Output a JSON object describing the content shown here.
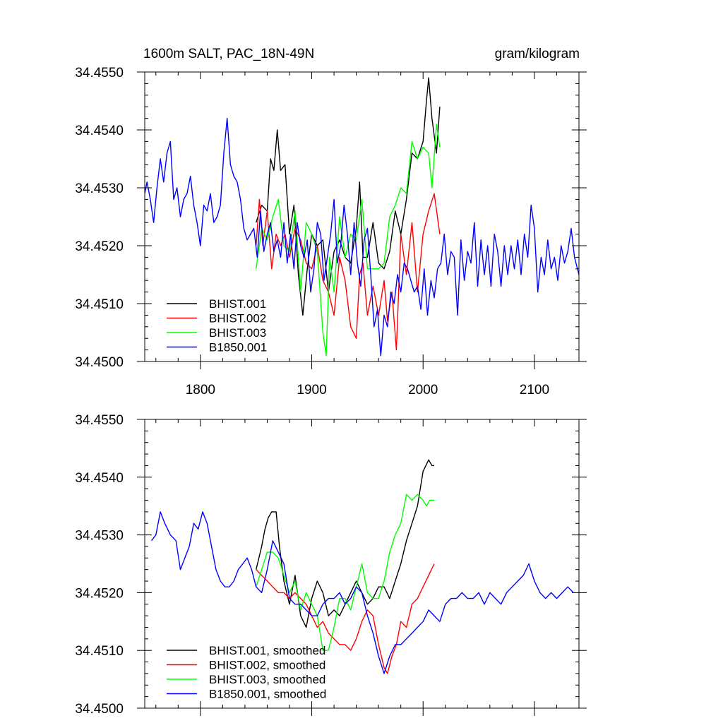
{
  "chart_data": [
    {
      "type": "line",
      "title": "1600m SALT, PAC_18N-49N",
      "units": "gram/kilogram",
      "xlim": [
        1750,
        2140
      ],
      "ylim": [
        34.45,
        34.455
      ],
      "xticks": [
        1800,
        1900,
        2000,
        2100
      ],
      "yticks": [
        34.45,
        34.451,
        34.452,
        34.453,
        34.454,
        34.455
      ],
      "ytick_labels": [
        "34.4500",
        "34.4510",
        "34.4520",
        "34.4530",
        "34.4540",
        "34.4550"
      ],
      "xtick_labels": [
        "1800",
        "1900",
        "2000",
        "2100"
      ],
      "legend_position": "bottom-left",
      "series": [
        {
          "name": "BHIST.001",
          "color": "#000000",
          "x": [
            1850,
            1855,
            1860,
            1863,
            1866,
            1869,
            1872,
            1876,
            1880,
            1884,
            1888,
            1892,
            1896,
            1900,
            1905,
            1910,
            1915,
            1920,
            1925,
            1930,
            1935,
            1940,
            1943,
            1946,
            1950,
            1955,
            1960,
            1965,
            1970,
            1975,
            1980,
            1985,
            1990,
            1995,
            2000,
            2003,
            2005,
            2008,
            2012,
            2015
          ],
          "y": [
            34.4524,
            34.4527,
            34.4526,
            34.4535,
            34.4533,
            34.454,
            34.4533,
            34.4534,
            34.4522,
            34.4527,
            34.4515,
            34.4508,
            34.4516,
            34.4522,
            34.452,
            34.4521,
            34.4512,
            34.4519,
            34.4521,
            34.4518,
            34.4517,
            34.4523,
            34.4531,
            34.4518,
            34.4518,
            34.4524,
            34.4517,
            34.4516,
            34.4519,
            34.4526,
            34.4522,
            34.4528,
            34.4536,
            34.4535,
            34.4538,
            34.4545,
            34.4549,
            34.4542,
            34.4536,
            34.4544
          ]
        },
        {
          "name": "BHIST.002",
          "color": "#ff0000",
          "x": [
            1850,
            1853,
            1856,
            1860,
            1864,
            1868,
            1872,
            1876,
            1880,
            1885,
            1890,
            1895,
            1900,
            1905,
            1910,
            1915,
            1920,
            1925,
            1930,
            1935,
            1940,
            1943,
            1946,
            1950,
            1955,
            1960,
            1965,
            1968,
            1972,
            1976,
            1980,
            1985,
            1990,
            1995,
            2000,
            2005,
            2010,
            2015
          ],
          "y": [
            34.452,
            34.4528,
            34.452,
            34.4526,
            34.4516,
            34.4522,
            34.452,
            34.4522,
            34.4518,
            34.4523,
            34.4521,
            34.4517,
            34.4516,
            34.452,
            34.4514,
            34.4512,
            34.4508,
            34.4518,
            34.4514,
            34.4506,
            34.4504,
            34.4515,
            34.4517,
            34.4508,
            34.4513,
            34.4508,
            34.4514,
            34.4507,
            34.4512,
            34.4502,
            34.4522,
            34.4515,
            34.4524,
            34.4512,
            34.4522,
            34.4526,
            34.4529,
            34.4522
          ]
        },
        {
          "name": "BHIST.003",
          "color": "#00ff00",
          "x": [
            1850,
            1855,
            1860,
            1865,
            1870,
            1875,
            1880,
            1885,
            1890,
            1895,
            1900,
            1905,
            1910,
            1913,
            1916,
            1920,
            1925,
            1930,
            1935,
            1940,
            1945,
            1950,
            1955,
            1960,
            1965,
            1970,
            1975,
            1980,
            1985,
            1990,
            1995,
            2000,
            2005,
            2008,
            2012,
            2015
          ],
          "y": [
            34.4516,
            34.4523,
            34.4521,
            34.4525,
            34.4528,
            34.452,
            34.4519,
            34.4526,
            34.4512,
            34.4524,
            34.4522,
            34.4519,
            34.4505,
            34.4501,
            34.4518,
            34.4512,
            34.4525,
            34.4518,
            34.4522,
            34.4521,
            34.4528,
            34.4516,
            34.4516,
            34.4516,
            34.4517,
            34.4525,
            34.4527,
            34.453,
            34.4529,
            34.4538,
            34.4535,
            34.4537,
            34.4536,
            34.453,
            34.4541,
            34.4537
          ]
        },
        {
          "name": "B1850.001",
          "color": "#0000ff",
          "x": [
            1750,
            1752,
            1755,
            1758,
            1761,
            1764,
            1767,
            1770,
            1773,
            1776,
            1779,
            1782,
            1785,
            1788,
            1791,
            1794,
            1797,
            1800,
            1803,
            1806,
            1809,
            1812,
            1815,
            1818,
            1821,
            1824,
            1827,
            1830,
            1833,
            1836,
            1839,
            1842,
            1845,
            1848,
            1851,
            1854,
            1857,
            1860,
            1863,
            1866,
            1869,
            1872,
            1875,
            1878,
            1881,
            1884,
            1887,
            1890,
            1893,
            1896,
            1899,
            1902,
            1905,
            1908,
            1911,
            1914,
            1917,
            1920,
            1923,
            1926,
            1929,
            1932,
            1935,
            1938,
            1941,
            1944,
            1947,
            1950,
            1953,
            1956,
            1959,
            1962,
            1965,
            1968,
            1971,
            1974,
            1977,
            1980,
            1983,
            1986,
            1989,
            1992,
            1995,
            1998,
            2001,
            2004,
            2007,
            2010,
            2013,
            2016,
            2019,
            2022,
            2025,
            2028,
            2031,
            2034,
            2037,
            2040,
            2043,
            2046,
            2049,
            2052,
            2055,
            2058,
            2061,
            2064,
            2067,
            2070,
            2073,
            2076,
            2079,
            2082,
            2085,
            2088,
            2091,
            2094,
            2097,
            2100,
            2103,
            2106,
            2109,
            2112,
            2115,
            2118,
            2121,
            2124,
            2127,
            2130,
            2133,
            2136,
            2140
          ],
          "y": [
            34.4529,
            34.4531,
            34.4528,
            34.4524,
            34.453,
            34.4535,
            34.4531,
            34.4536,
            34.4538,
            34.4528,
            34.453,
            34.4525,
            34.4528,
            34.4529,
            34.4532,
            34.4527,
            34.4524,
            34.452,
            34.4527,
            34.4526,
            34.4529,
            34.4524,
            34.4525,
            34.4527,
            34.4536,
            34.4542,
            34.4534,
            34.4532,
            34.4531,
            34.4528,
            34.4523,
            34.4521,
            34.4522,
            34.4523,
            34.4518,
            34.4526,
            34.4519,
            34.4522,
            34.4524,
            34.4519,
            34.4521,
            34.4518,
            34.4524,
            34.4517,
            34.4522,
            34.4516,
            34.4524,
            34.452,
            34.4518,
            34.4521,
            34.4512,
            34.4516,
            34.4524,
            34.4522,
            34.4514,
            34.4518,
            34.4522,
            34.4528,
            34.4517,
            34.452,
            34.4527,
            34.4522,
            34.4515,
            34.4524,
            34.4517,
            34.4513,
            34.4521,
            34.4523,
            34.4515,
            34.4506,
            34.4509,
            34.4501,
            34.4508,
            34.4506,
            34.4512,
            34.451,
            34.4515,
            34.4512,
            34.4517,
            34.4516,
            34.4514,
            34.4512,
            34.4513,
            34.4509,
            34.4516,
            34.4508,
            34.4514,
            34.4511,
            34.4516,
            34.4517,
            34.4522,
            34.4515,
            34.4519,
            34.4518,
            34.4508,
            34.4521,
            34.4514,
            34.4519,
            34.4517,
            34.4524,
            34.4513,
            34.4521,
            34.4515,
            34.452,
            34.4513,
            34.4522,
            34.4519,
            34.4513,
            34.452,
            34.4515,
            34.452,
            34.4516,
            34.4521,
            34.4515,
            34.4522,
            34.4518,
            34.4527,
            34.4523,
            34.4512,
            34.4518,
            34.4515,
            34.4521,
            34.4516,
            34.4518,
            34.4514,
            34.452,
            34.4517,
            34.4519,
            34.4523,
            34.4518,
            34.4515
          ]
        }
      ]
    },
    {
      "type": "line",
      "xlim": [
        1750,
        2140
      ],
      "ylim": [
        34.45,
        34.455
      ],
      "xticks": [
        1800,
        1900,
        2000,
        2100
      ],
      "yticks": [
        34.45,
        34.451,
        34.452,
        34.453,
        34.454,
        34.455
      ],
      "ytick_labels": [
        "34.4500",
        "34.4510",
        "34.4520",
        "34.4530",
        "34.4540",
        "34.4550"
      ],
      "legend_position": "bottom-left",
      "series": [
        {
          "name": "BHIST.001, smoothed",
          "color": "#000000",
          "x": [
            1850,
            1855,
            1858,
            1861,
            1864,
            1868,
            1871,
            1875,
            1880,
            1885,
            1890,
            1895,
            1900,
            1905,
            1910,
            1915,
            1920,
            1925,
            1930,
            1935,
            1940,
            1945,
            1950,
            1955,
            1960,
            1965,
            1970,
            1975,
            1980,
            1985,
            1990,
            1995,
            2000,
            2005,
            2008,
            2010
          ],
          "y": [
            34.4524,
            34.4528,
            34.4531,
            34.4533,
            34.4534,
            34.4534,
            34.4528,
            34.4522,
            34.4518,
            34.4523,
            34.4516,
            34.4514,
            34.4519,
            34.4522,
            34.452,
            34.4516,
            34.4517,
            34.4516,
            34.4518,
            34.452,
            34.4522,
            34.452,
            34.4518,
            34.4519,
            34.4521,
            34.4521,
            34.4519,
            34.4522,
            34.4525,
            34.4529,
            34.4532,
            34.4535,
            34.4541,
            34.4543,
            34.4542,
            34.4542
          ]
        },
        {
          "name": "BHIST.002, smoothed",
          "color": "#ff0000",
          "x": [
            1850,
            1855,
            1860,
            1865,
            1870,
            1875,
            1880,
            1885,
            1890,
            1895,
            1900,
            1905,
            1910,
            1915,
            1920,
            1925,
            1930,
            1935,
            1940,
            1945,
            1950,
            1955,
            1960,
            1965,
            1968,
            1972,
            1976,
            1980,
            1985,
            1990,
            1995,
            2000,
            2005,
            2010
          ],
          "y": [
            34.4524,
            34.4523,
            34.4522,
            34.4521,
            34.452,
            34.452,
            34.4519,
            34.452,
            34.4519,
            34.4518,
            34.4516,
            34.4514,
            34.4515,
            34.4513,
            34.4512,
            34.4511,
            34.4511,
            34.451,
            34.4512,
            34.4515,
            34.4517,
            34.4516,
            34.4511,
            34.4507,
            34.4506,
            34.4509,
            34.4511,
            34.4515,
            34.4514,
            34.4518,
            34.4519,
            34.4521,
            34.4523,
            34.4525
          ]
        },
        {
          "name": "BHIST.003, smoothed",
          "color": "#00ff00",
          "x": [
            1850,
            1855,
            1860,
            1865,
            1870,
            1875,
            1880,
            1885,
            1890,
            1895,
            1900,
            1905,
            1910,
            1915,
            1920,
            1925,
            1930,
            1935,
            1940,
            1945,
            1950,
            1955,
            1960,
            1965,
            1970,
            1975,
            1980,
            1985,
            1990,
            1995,
            2000,
            2003,
            2006,
            2010
          ],
          "y": [
            34.4521,
            34.4524,
            34.4527,
            34.4527,
            34.4526,
            34.4523,
            34.452,
            34.4522,
            34.4517,
            34.452,
            34.4518,
            34.4516,
            34.451,
            34.451,
            34.4514,
            34.4519,
            34.4519,
            34.4517,
            34.4521,
            34.4525,
            34.452,
            34.4519,
            34.4519,
            34.4522,
            34.4527,
            34.453,
            34.4532,
            34.4537,
            34.4536,
            34.4537,
            34.4536,
            34.4535,
            34.4536,
            34.4536
          ]
        },
        {
          "name": "B1850.001, smoothed",
          "color": "#0000ff",
          "x": [
            1756,
            1760,
            1764,
            1768,
            1773,
            1778,
            1782,
            1786,
            1790,
            1794,
            1798,
            1802,
            1806,
            1810,
            1814,
            1818,
            1822,
            1826,
            1830,
            1834,
            1838,
            1842,
            1846,
            1850,
            1855,
            1860,
            1865,
            1870,
            1875,
            1880,
            1885,
            1890,
            1895,
            1900,
            1905,
            1910,
            1915,
            1920,
            1925,
            1930,
            1935,
            1940,
            1945,
            1950,
            1955,
            1960,
            1965,
            1970,
            1975,
            1980,
            1985,
            1990,
            1995,
            2000,
            2005,
            2010,
            2015,
            2020,
            2025,
            2030,
            2035,
            2040,
            2045,
            2050,
            2055,
            2060,
            2065,
            2070,
            2075,
            2080,
            2085,
            2090,
            2095,
            2100,
            2105,
            2110,
            2115,
            2120,
            2125,
            2130,
            2135
          ],
          "y": [
            34.4529,
            34.453,
            34.4534,
            34.4532,
            34.453,
            34.4529,
            34.4524,
            34.4526,
            34.4528,
            34.4532,
            34.4531,
            34.4534,
            34.4532,
            34.4528,
            34.4524,
            34.4522,
            34.4521,
            34.4521,
            34.4522,
            34.4524,
            34.4525,
            34.4526,
            34.4524,
            34.4521,
            34.452,
            34.4524,
            34.4529,
            34.4527,
            34.4525,
            34.4519,
            34.4518,
            34.4518,
            34.4517,
            34.4516,
            34.4516,
            34.4518,
            34.4519,
            34.4519,
            34.452,
            34.4518,
            34.4519,
            34.4521,
            34.452,
            34.4516,
            34.4513,
            34.4509,
            34.4506,
            34.4509,
            34.4511,
            34.4511,
            34.4512,
            34.4513,
            34.4514,
            34.4515,
            34.4517,
            34.4516,
            34.4515,
            34.4518,
            34.4519,
            34.4519,
            34.452,
            34.4519,
            34.4519,
            34.452,
            34.4518,
            34.452,
            34.4519,
            34.4518,
            34.452,
            34.4521,
            34.4522,
            34.4523,
            34.4525,
            34.4522,
            34.452,
            34.4519,
            34.452,
            34.4519,
            34.452,
            34.4521,
            34.452
          ]
        }
      ]
    }
  ]
}
